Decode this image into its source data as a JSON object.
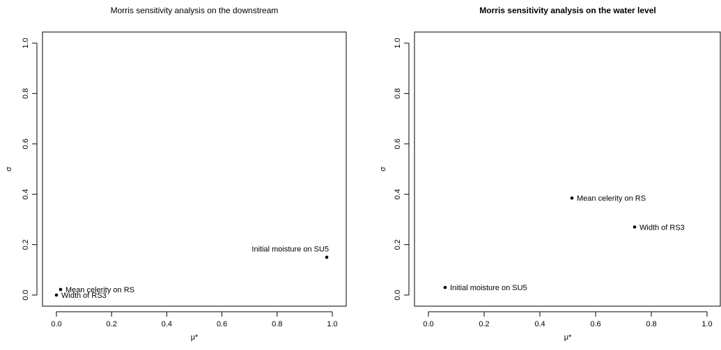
{
  "chart_data": [
    {
      "type": "scatter",
      "title": "Morris sensitivity analysis on the downstream",
      "title_bold": false,
      "xlabel": "μ*",
      "ylabel": "σ",
      "xlim": [
        0,
        1
      ],
      "ylim": [
        0,
        1
      ],
      "xticks": [
        "0.0",
        "0.2",
        "0.4",
        "0.6",
        "0.8",
        "1.0"
      ],
      "yticks": [
        "0.0",
        "0.2",
        "0.4",
        "0.6",
        "0.8",
        "1.0"
      ],
      "grid": false,
      "points": [
        {
          "label": "Initial moisture on SU5",
          "x": 0.98,
          "y": 0.15,
          "label_side": "above-left"
        },
        {
          "label": "Mean celerity on RS",
          "x": 0.015,
          "y": 0.022,
          "label_side": "right"
        },
        {
          "label": "Width of RS3",
          "x": 0.0,
          "y": 0.0,
          "label_side": "right"
        }
      ]
    },
    {
      "type": "scatter",
      "title": "Morris sensitivity analysis on the water level",
      "title_bold": true,
      "xlabel": "μ*",
      "ylabel": "σ",
      "xlim": [
        0,
        1
      ],
      "ylim": [
        0,
        1
      ],
      "xticks": [
        "0.0",
        "0.2",
        "0.4",
        "0.6",
        "0.8",
        "1.0"
      ],
      "yticks": [
        "0.0",
        "0.2",
        "0.4",
        "0.6",
        "0.8",
        "1.0"
      ],
      "grid": false,
      "points": [
        {
          "label": "Mean celerity on RS",
          "x": 0.515,
          "y": 0.385,
          "label_side": "right"
        },
        {
          "label": "Width of RS3",
          "x": 0.74,
          "y": 0.27,
          "label_side": "right"
        },
        {
          "label": "Initial moisture on SU5",
          "x": 0.06,
          "y": 0.03,
          "label_side": "right"
        }
      ]
    }
  ]
}
